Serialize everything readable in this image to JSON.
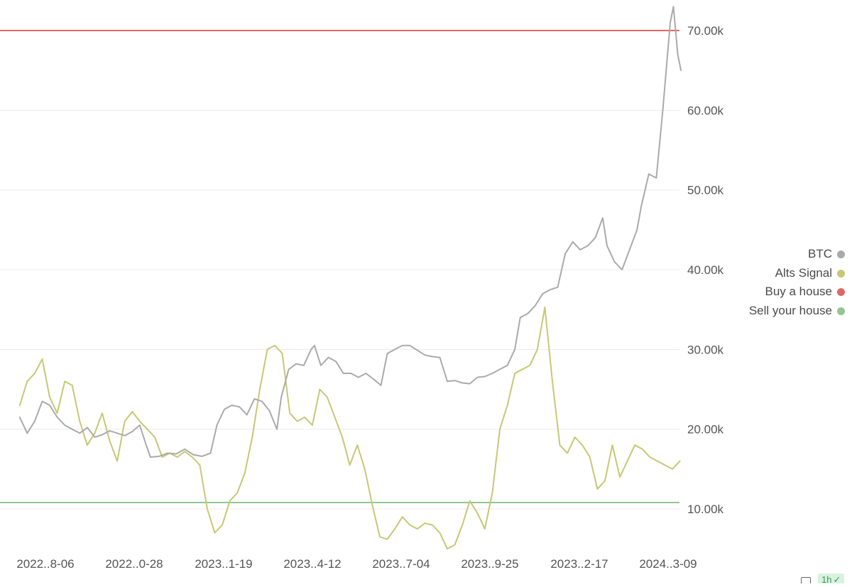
{
  "chart_data": {
    "type": "line",
    "title": "",
    "xlabel": "",
    "ylabel": "",
    "x_ticks": [
      "2022..8-06",
      "2022..0-28",
      "2023..1-19",
      "2023..4-12",
      "2023..7-04",
      "2023..9-25",
      "2023..2-17",
      "2024..3-09"
    ],
    "y_ticks": [
      "10.00k",
      "20.00k",
      "30.00k",
      "40.00k",
      "50.00k",
      "60.00k",
      "70.00k"
    ],
    "y_tick_values": [
      10000,
      20000,
      30000,
      40000,
      50000,
      60000,
      70000
    ],
    "ylim": [
      5000,
      73700
    ],
    "grid": "horizontal",
    "legend_position": "right",
    "series": [
      {
        "name": "BTC",
        "color": "#aaaaaa",
        "x": [
          "2022-07-13",
          "2022-07-20",
          "2022-07-27",
          "2022-08-03",
          "2022-08-10",
          "2022-08-17",
          "2022-08-24",
          "2022-08-31",
          "2022-09-07",
          "2022-09-14",
          "2022-09-21",
          "2022-09-28",
          "2022-10-05",
          "2022-10-12",
          "2022-10-19",
          "2022-10-26",
          "2022-11-02",
          "2022-11-08",
          "2022-11-12",
          "2022-11-20",
          "2022-11-28",
          "2022-12-06",
          "2022-12-14",
          "2022-12-22",
          "2022-12-30",
          "2023-01-07",
          "2023-01-13",
          "2023-01-20",
          "2023-01-27",
          "2023-02-03",
          "2023-02-10",
          "2023-02-17",
          "2023-02-24",
          "2023-03-03",
          "2023-03-10",
          "2023-03-14",
          "2023-03-21",
          "2023-03-28",
          "2023-04-04",
          "2023-04-11",
          "2023-04-14",
          "2023-04-20",
          "2023-04-27",
          "2023-05-04",
          "2023-05-11",
          "2023-05-18",
          "2023-05-25",
          "2023-06-01",
          "2023-06-08",
          "2023-06-15",
          "2023-06-21",
          "2023-06-28",
          "2023-07-05",
          "2023-07-12",
          "2023-07-19",
          "2023-07-26",
          "2023-08-02",
          "2023-08-09",
          "2023-08-16",
          "2023-08-23",
          "2023-08-30",
          "2023-09-06",
          "2023-09-13",
          "2023-09-20",
          "2023-09-27",
          "2023-10-04",
          "2023-10-11",
          "2023-10-18",
          "2023-10-23",
          "2023-10-30",
          "2023-11-06",
          "2023-11-13",
          "2023-11-20",
          "2023-11-27",
          "2023-12-04",
          "2023-12-11",
          "2023-12-18",
          "2023-12-25",
          "2024-01-01",
          "2024-01-08",
          "2024-01-12",
          "2024-01-19",
          "2024-01-26",
          "2024-02-02",
          "2024-02-09",
          "2024-02-13",
          "2024-02-20",
          "2024-02-27",
          "2024-03-04",
          "2024-03-11",
          "2024-03-14",
          "2024-03-18",
          "2024-03-21"
        ],
        "values": [
          21500,
          19500,
          21000,
          23500,
          23000,
          21500,
          20500,
          20000,
          19500,
          20200,
          19000,
          19300,
          19800,
          19500,
          19200,
          19700,
          20500,
          18000,
          16500,
          16600,
          17000,
          16900,
          17500,
          16800,
          16600,
          17000,
          20500,
          22500,
          23000,
          22800,
          21800,
          23800,
          23500,
          22300,
          20000,
          24000,
          27500,
          28200,
          28000,
          30000,
          30500,
          28000,
          29000,
          28500,
          27000,
          27000,
          26500,
          27000,
          26300,
          25500,
          29500,
          30000,
          30500,
          30500,
          29900,
          29300,
          29100,
          29000,
          26000,
          26100,
          25800,
          25700,
          26500,
          26600,
          27000,
          27500,
          28000,
          30000,
          34000,
          34500,
          35500,
          37000,
          37500,
          37800,
          42000,
          43500,
          42500,
          43000,
          44000,
          46500,
          43000,
          41000,
          40000,
          42500,
          45000,
          48000,
          52000,
          51500,
          60000,
          71000,
          73000,
          67000,
          65000
        ]
      },
      {
        "name": "Alts Signal",
        "color": "#c6c873",
        "x": [
          "2022-07-13",
          "2022-07-20",
          "2022-07-27",
          "2022-08-03",
          "2022-08-10",
          "2022-08-17",
          "2022-08-24",
          "2022-08-31",
          "2022-09-07",
          "2022-09-14",
          "2022-09-21",
          "2022-09-28",
          "2022-10-05",
          "2022-10-12",
          "2022-10-19",
          "2022-10-26",
          "2022-11-02",
          "2022-11-09",
          "2022-11-16",
          "2022-11-23",
          "2022-11-30",
          "2022-12-07",
          "2022-12-14",
          "2022-12-21",
          "2022-12-28",
          "2023-01-04",
          "2023-01-11",
          "2023-01-18",
          "2023-01-25",
          "2023-02-01",
          "2023-02-08",
          "2023-02-15",
          "2023-02-22",
          "2023-03-01",
          "2023-03-08",
          "2023-03-15",
          "2023-03-22",
          "2023-03-29",
          "2023-04-05",
          "2023-04-12",
          "2023-04-19",
          "2023-04-26",
          "2023-05-03",
          "2023-05-10",
          "2023-05-17",
          "2023-05-24",
          "2023-05-31",
          "2023-06-07",
          "2023-06-14",
          "2023-06-21",
          "2023-06-28",
          "2023-07-05",
          "2023-07-12",
          "2023-07-19",
          "2023-07-26",
          "2023-08-02",
          "2023-08-09",
          "2023-08-16",
          "2023-08-23",
          "2023-08-30",
          "2023-09-06",
          "2023-09-13",
          "2023-09-20",
          "2023-09-27",
          "2023-10-04",
          "2023-10-11",
          "2023-10-18",
          "2023-10-25",
          "2023-11-01",
          "2023-11-08",
          "2023-11-15",
          "2023-11-22",
          "2023-11-29",
          "2023-12-06",
          "2023-12-13",
          "2023-12-20",
          "2023-12-27",
          "2024-01-03",
          "2024-01-10",
          "2024-01-17",
          "2024-01-24",
          "2024-01-31",
          "2024-02-07",
          "2024-02-14",
          "2024-02-21",
          "2024-02-28",
          "2024-03-06",
          "2024-03-13",
          "2024-03-20"
        ],
        "values": [
          23000,
          26000,
          27000,
          28800,
          24000,
          22000,
          26000,
          25500,
          21000,
          18000,
          19500,
          22000,
          18500,
          16000,
          21000,
          22200,
          21000,
          20000,
          19000,
          16500,
          17000,
          16500,
          17200,
          16500,
          15500,
          10000,
          7000,
          8000,
          11000,
          12000,
          14500,
          19000,
          25000,
          30000,
          30500,
          29500,
          22000,
          21000,
          21500,
          20500,
          25000,
          24000,
          21500,
          19000,
          15500,
          18000,
          15000,
          10500,
          6500,
          6200,
          7500,
          9000,
          8000,
          7500,
          8200,
          8000,
          7000,
          5000,
          5500,
          8000,
          11000,
          9500,
          7500,
          12000,
          20000,
          23000,
          27000,
          27500,
          28000,
          30000,
          35300,
          26000,
          18000,
          17000,
          19000,
          18000,
          16500,
          12500,
          13500,
          18000,
          14000,
          16000,
          18000,
          17500,
          16500,
          16000,
          15500,
          15000,
          16000
        ],
        "note_unused": ""
      }
    ],
    "reference_lines": [
      {
        "name": "Buy a house",
        "y": 70000,
        "color": "#e06666"
      },
      {
        "name": "Sell your house",
        "y": 10800,
        "color": "#93c593"
      }
    ]
  },
  "legend": {
    "items": [
      {
        "label": "BTC",
        "color": "#aaaaaa"
      },
      {
        "label": "Alts Signal",
        "color": "#c6c873"
      },
      {
        "label": "Buy a house",
        "color": "#e06666"
      },
      {
        "label": "Sell your house",
        "color": "#93c593"
      }
    ]
  },
  "toolbar": {
    "interval_label": "1h",
    "camera_icon": "camera-icon",
    "check_icon": "check-circle-icon"
  }
}
